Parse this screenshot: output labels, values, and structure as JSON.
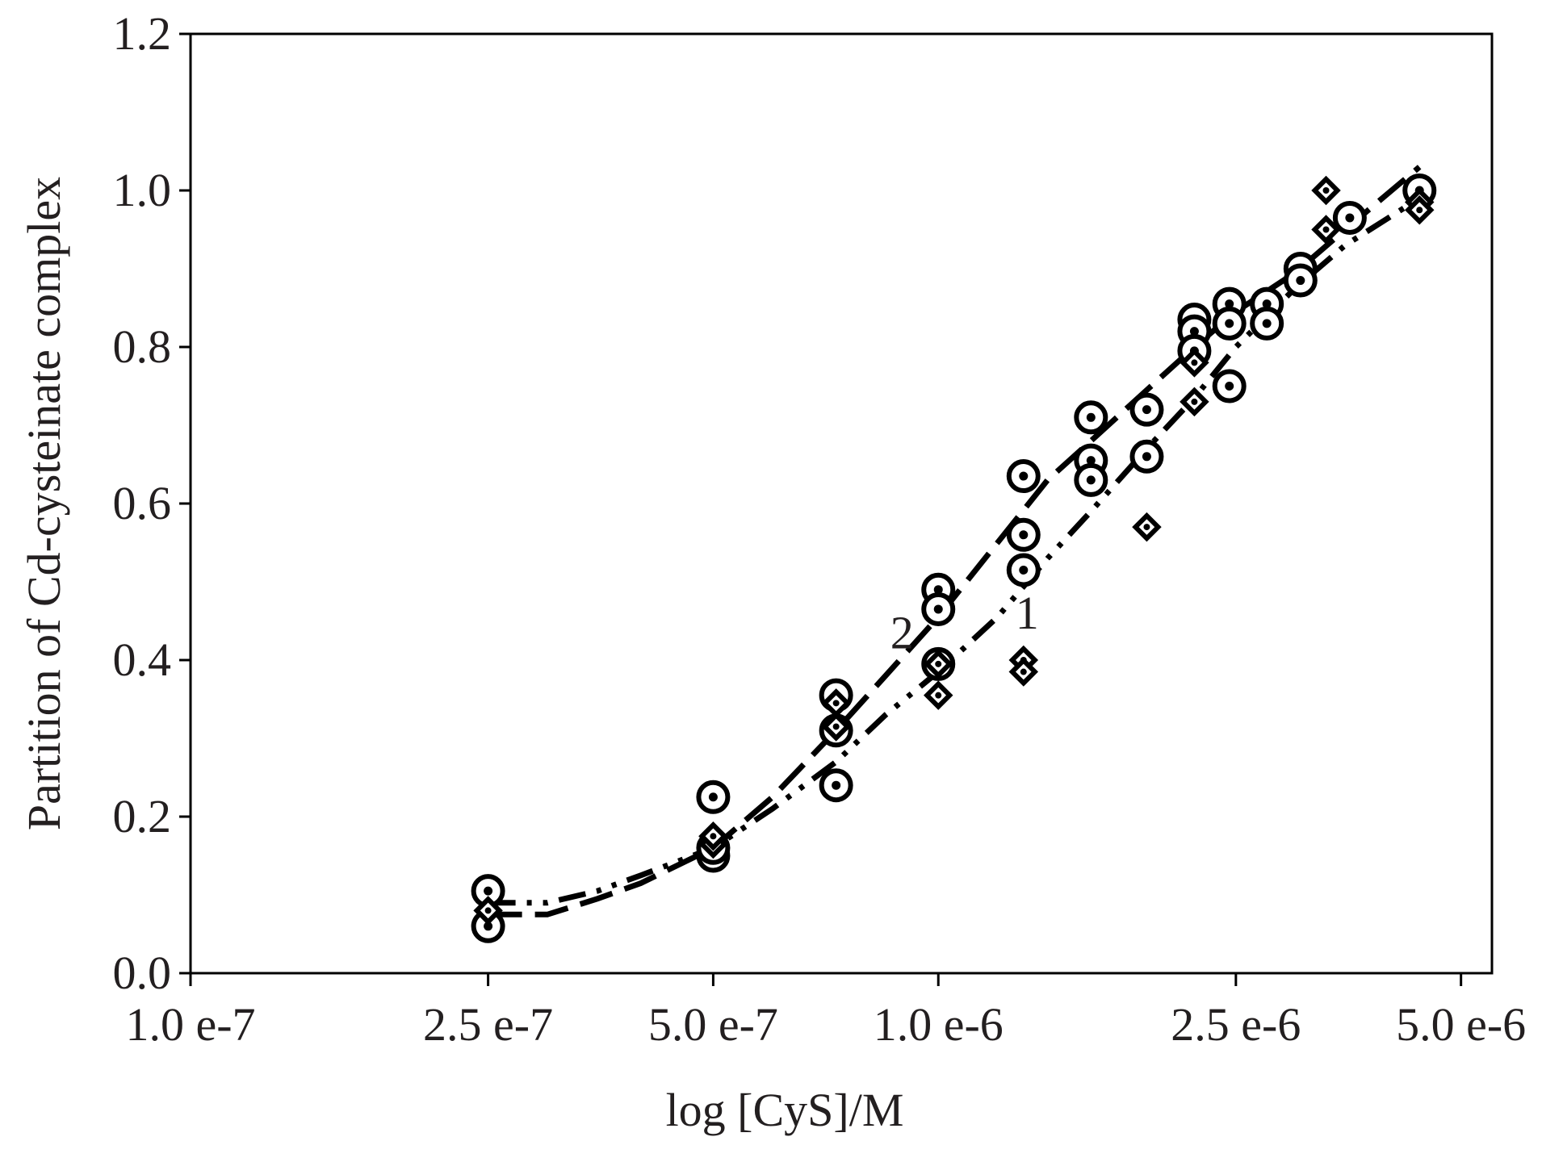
{
  "chart_data": {
    "type": "scatter",
    "xlabel": "log [CyS]/M",
    "ylabel": "Partition of Cd-cysteinate complex",
    "xscale": "log",
    "xlim": [
      1e-07,
      5.5e-06
    ],
    "ylim": [
      0,
      1.2
    ],
    "x_ticks": [
      {
        "value": 1e-07,
        "label": "1.0 e-7"
      },
      {
        "value": 2.5e-07,
        "label": "2.5 e-7"
      },
      {
        "value": 5e-07,
        "label": "5.0 e-7"
      },
      {
        "value": 1e-06,
        "label": "1.0 e-6"
      },
      {
        "value": 2.5e-06,
        "label": "2.5 e-6"
      },
      {
        "value": 5e-06,
        "label": "5.0 e-6"
      }
    ],
    "y_ticks": [
      {
        "value": 0,
        "label": "0.0"
      },
      {
        "value": 0.2,
        "label": "0.2"
      },
      {
        "value": 0.4,
        "label": "0.4"
      },
      {
        "value": 0.6,
        "label": "0.6"
      },
      {
        "value": 0.8,
        "label": "0.8"
      },
      {
        "value": 1.0,
        "label": "1.0"
      },
      {
        "value": 1.2,
        "label": "1.2"
      }
    ],
    "grid": false,
    "series": [
      {
        "marker": "circle-dot",
        "points": [
          [
            2.5e-07,
            0.105
          ],
          [
            2.5e-07,
            0.06
          ],
          [
            5e-07,
            0.225
          ],
          [
            5e-07,
            0.15
          ],
          [
            5e-07,
            0.16
          ],
          [
            7.3e-07,
            0.355
          ],
          [
            7.3e-07,
            0.31
          ],
          [
            7.3e-07,
            0.24
          ],
          [
            1e-06,
            0.49
          ],
          [
            1e-06,
            0.465
          ],
          [
            1e-06,
            0.395
          ],
          [
            1.3e-06,
            0.635
          ],
          [
            1.3e-06,
            0.56
          ],
          [
            1.3e-06,
            0.515
          ],
          [
            1.6e-06,
            0.71
          ],
          [
            1.6e-06,
            0.655
          ],
          [
            1.6e-06,
            0.63
          ],
          [
            1.9e-06,
            0.72
          ],
          [
            1.9e-06,
            0.66
          ],
          [
            2.2e-06,
            0.835
          ],
          [
            2.2e-06,
            0.82
          ],
          [
            2.2e-06,
            0.795
          ],
          [
            2.45e-06,
            0.855
          ],
          [
            2.45e-06,
            0.83
          ],
          [
            2.45e-06,
            0.75
          ],
          [
            2.75e-06,
            0.855
          ],
          [
            2.75e-06,
            0.83
          ],
          [
            3.05e-06,
            0.9
          ],
          [
            3.05e-06,
            0.885
          ],
          [
            3.55e-06,
            0.965
          ],
          [
            4.4e-06,
            1.0
          ]
        ]
      },
      {
        "marker": "diamond-dot",
        "points": [
          [
            2.5e-07,
            0.08
          ],
          [
            5e-07,
            0.165
          ],
          [
            5e-07,
            0.175
          ],
          [
            7.3e-07,
            0.345
          ],
          [
            7.3e-07,
            0.315
          ],
          [
            1e-06,
            0.395
          ],
          [
            1e-06,
            0.355
          ],
          [
            1.3e-06,
            0.4
          ],
          [
            1.3e-06,
            0.385
          ],
          [
            1.9e-06,
            0.57
          ],
          [
            2.2e-06,
            0.78
          ],
          [
            2.2e-06,
            0.73
          ],
          [
            3.3e-06,
            1.0
          ],
          [
            3.3e-06,
            0.95
          ],
          [
            4.4e-06,
            0.985
          ],
          [
            4.4e-06,
            0.975
          ]
        ]
      }
    ],
    "curves": [
      {
        "label": "1",
        "style": "dash-dot-dot",
        "points": [
          [
            2.5e-07,
            0.09
          ],
          [
            3e-07,
            0.09
          ],
          [
            3.5e-07,
            0.105
          ],
          [
            4e-07,
            0.125
          ],
          [
            5e-07,
            0.16
          ],
          [
            6e-07,
            0.21
          ],
          [
            7.3e-07,
            0.27
          ],
          [
            8.5e-07,
            0.33
          ],
          [
            1e-06,
            0.385
          ],
          [
            1.2e-06,
            0.455
          ],
          [
            1.4e-06,
            0.53
          ],
          [
            1.6e-06,
            0.59
          ],
          [
            1.9e-06,
            0.67
          ],
          [
            2.2e-06,
            0.735
          ],
          [
            2.5e-06,
            0.8
          ],
          [
            3e-06,
            0.875
          ],
          [
            3.5e-06,
            0.93
          ],
          [
            4.4e-06,
            0.99
          ]
        ]
      },
      {
        "label": "2",
        "style": "long-dash",
        "points": [
          [
            2.5e-07,
            0.075
          ],
          [
            3e-07,
            0.075
          ],
          [
            3.5e-07,
            0.095
          ],
          [
            4e-07,
            0.115
          ],
          [
            5e-07,
            0.16
          ],
          [
            6e-07,
            0.225
          ],
          [
            7.3e-07,
            0.31
          ],
          [
            8.5e-07,
            0.38
          ],
          [
            1e-06,
            0.455
          ],
          [
            1.2e-06,
            0.55
          ],
          [
            1.4e-06,
            0.63
          ],
          [
            1.6e-06,
            0.68
          ],
          [
            1.9e-06,
            0.745
          ],
          [
            2.2e-06,
            0.8
          ],
          [
            2.5e-06,
            0.845
          ],
          [
            3e-06,
            0.895
          ],
          [
            3.5e-06,
            0.95
          ],
          [
            4.4e-06,
            1.03
          ]
        ]
      }
    ]
  }
}
